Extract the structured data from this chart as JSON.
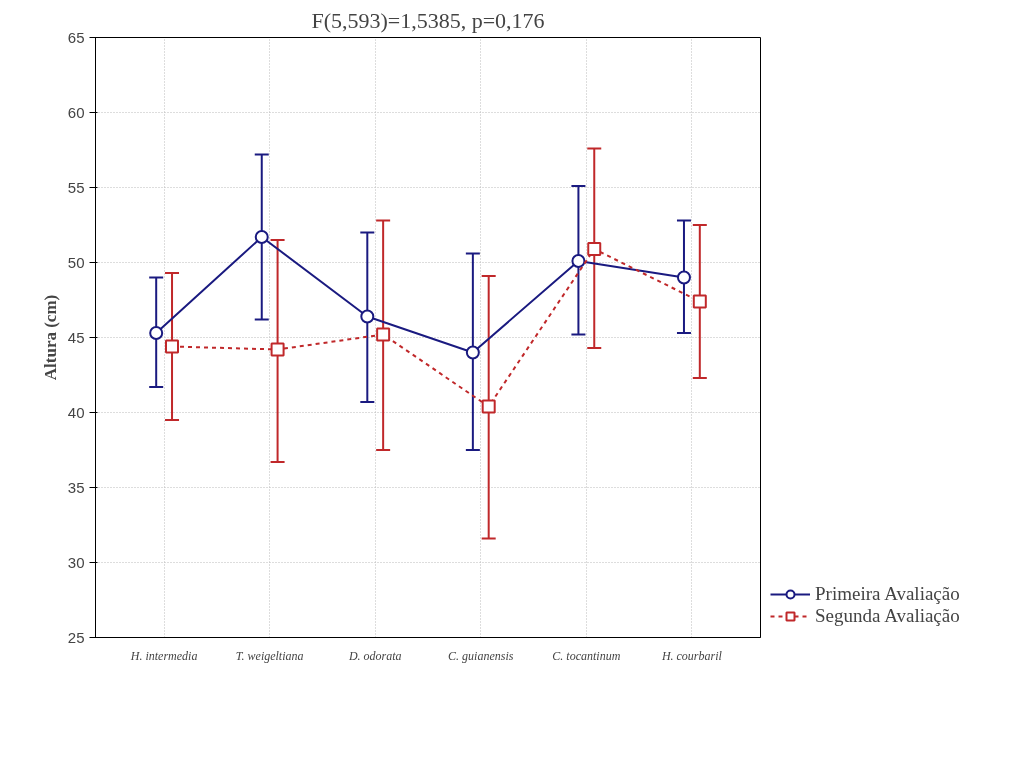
{
  "chart_data": {
    "type": "line",
    "title": "F(5,593)=1,5385, p=0,176",
    "ylabel": "Altura (cm)",
    "categories": [
      "H. intermedia",
      "T. weigeltiana",
      "D. odorata",
      "C. guianensis",
      "C. tocantinum",
      "H. courbaril"
    ],
    "ylim": [
      25,
      65
    ],
    "yticks": [
      25,
      30,
      35,
      40,
      45,
      50,
      55,
      60,
      65
    ],
    "grid": true,
    "legend": "bottom right",
    "series": [
      {
        "name": "Primeira Avaliação",
        "color": "#1a1a80",
        "marker": "circle",
        "line_style": "solid",
        "values": [
          45.3,
          51.7,
          46.4,
          44.0,
          50.1,
          49.0
        ],
        "errors": [
          [
            41.7,
            49.0
          ],
          [
            46.2,
            57.2
          ],
          [
            40.7,
            52.0
          ],
          [
            37.5,
            50.6
          ],
          [
            45.2,
            55.1
          ],
          [
            45.3,
            52.8
          ]
        ]
      },
      {
        "name": "Segunda Avaliação",
        "color": "#c0282a",
        "marker": "square",
        "line_style": "dashed",
        "values": [
          44.4,
          44.2,
          45.2,
          40.4,
          50.9,
          47.4
        ],
        "errors": [
          [
            39.5,
            49.3
          ],
          [
            36.7,
            51.5
          ],
          [
            37.5,
            52.8
          ],
          [
            31.6,
            49.1
          ],
          [
            44.3,
            57.6
          ],
          [
            42.3,
            52.5
          ]
        ]
      }
    ]
  }
}
